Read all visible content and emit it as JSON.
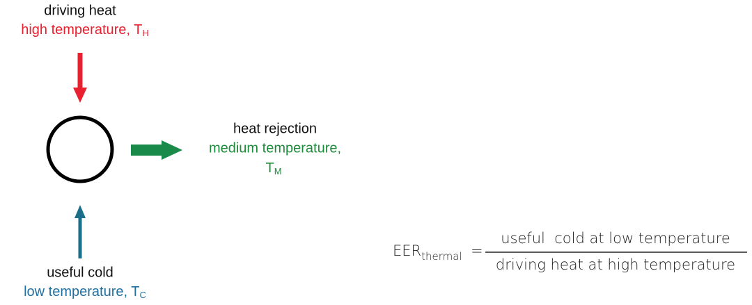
{
  "top": {
    "label": "driving heat",
    "temperature": "high temperature, T",
    "subscript": "H"
  },
  "right": {
    "label": "heat rejection",
    "temperature": "medium temperature,",
    "symbol": "T",
    "subscript": "M"
  },
  "bottom": {
    "label": "useful cold",
    "temperature": "low temperature, T",
    "subscript": "C"
  },
  "formula": {
    "lhs": "EER",
    "lhs_subscript": "thermal",
    "equals": "=",
    "numerator": "useful  cold at low temperature",
    "denominator": "driving heat at high temperature"
  }
}
